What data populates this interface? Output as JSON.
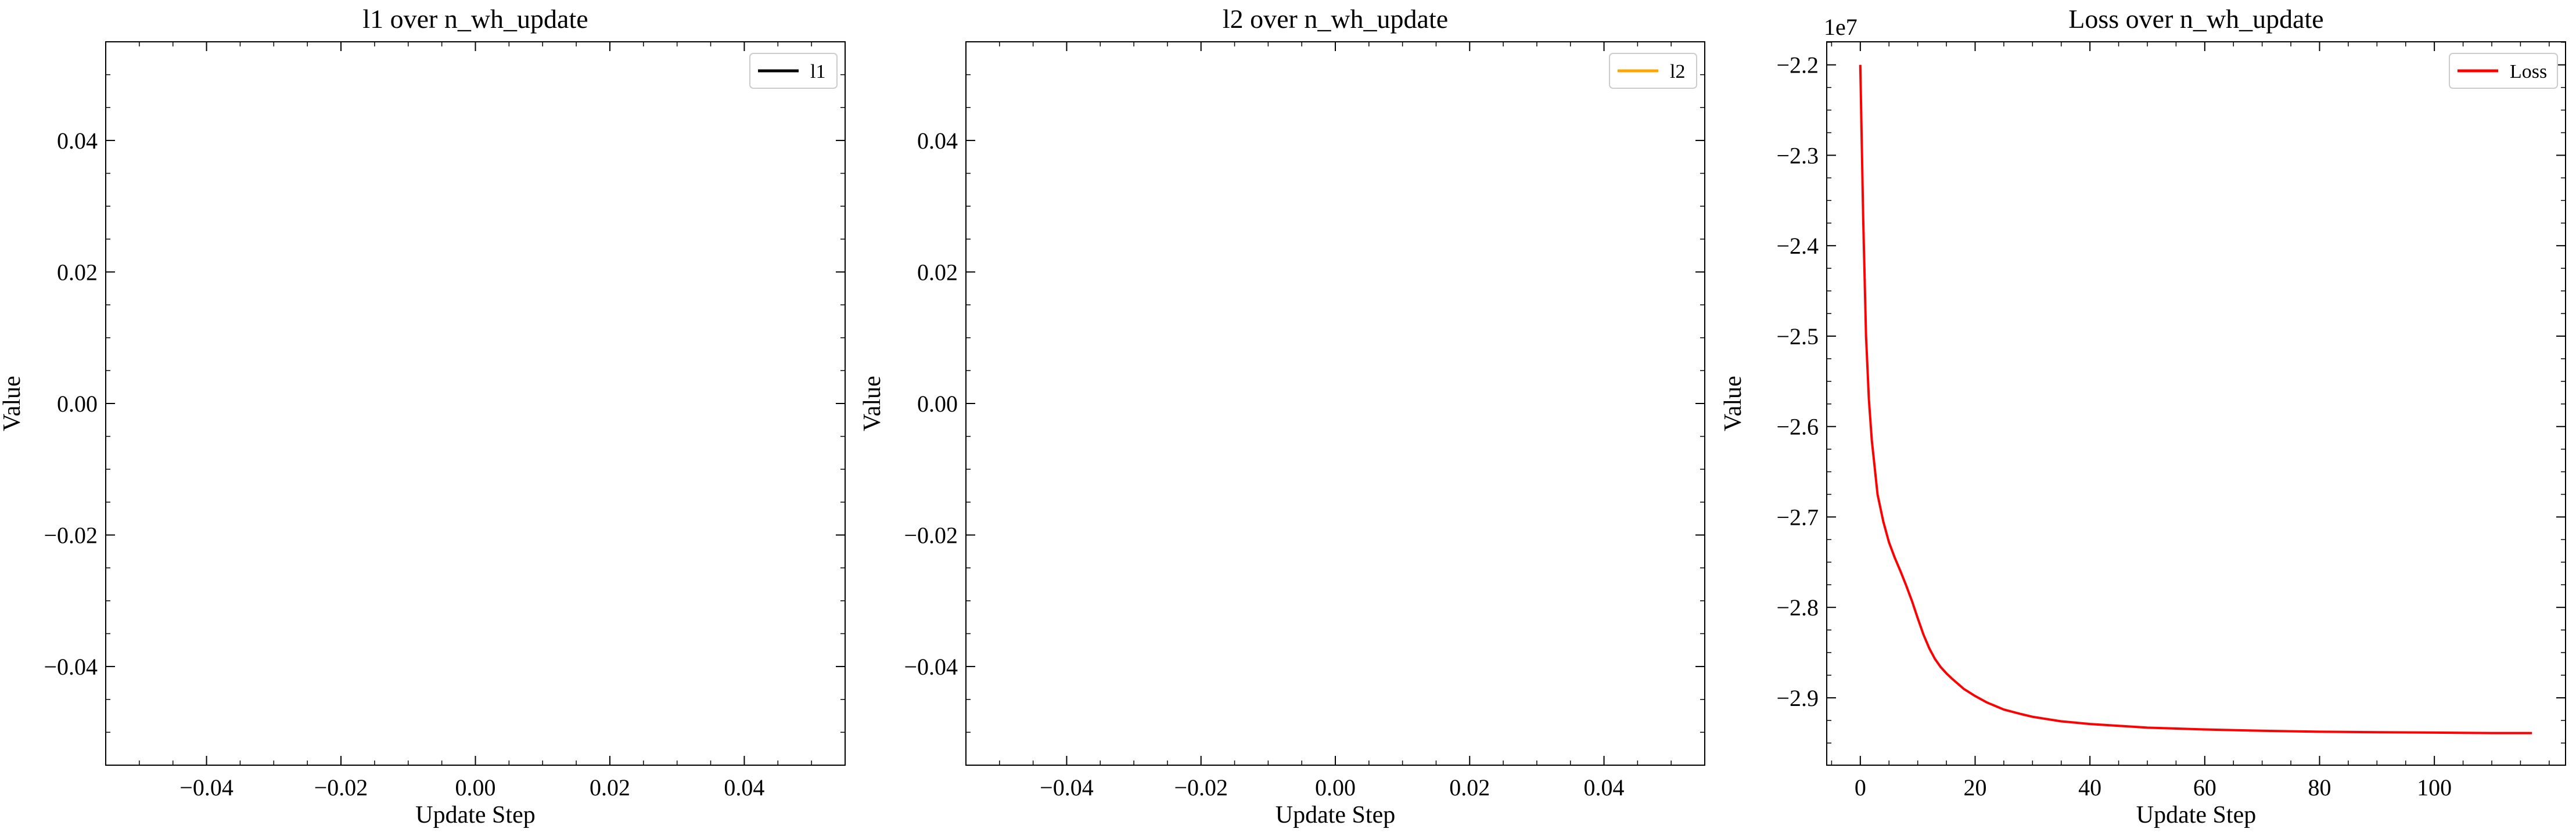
{
  "chart_data": [
    {
      "type": "line",
      "title": "l1 over n_wh_update",
      "xlabel": "Update Step",
      "ylabel": "Value",
      "xlim": [
        -0.055,
        0.055
      ],
      "ylim": [
        -0.055,
        0.055
      ],
      "xticks": [
        -0.04,
        -0.02,
        0.0,
        0.02,
        0.04
      ],
      "xtick_labels": [
        "−0.04",
        "−0.02",
        "0.00",
        "0.02",
        "0.04"
      ],
      "yticks": [
        0.04,
        0.02,
        0.0,
        -0.02,
        -0.04
      ],
      "ytick_labels": [
        "0.04",
        "0.02",
        "0.00",
        "−0.02",
        "−0.04"
      ],
      "legend": "top-right",
      "series": [
        {
          "name": "l1",
          "color": "#000000",
          "x": [],
          "y": []
        }
      ]
    },
    {
      "type": "line",
      "title": "l2 over n_wh_update",
      "xlabel": "Update Step",
      "ylabel": "Value",
      "xlim": [
        -0.055,
        0.055
      ],
      "ylim": [
        -0.055,
        0.055
      ],
      "xticks": [
        -0.04,
        -0.02,
        0.0,
        0.02,
        0.04
      ],
      "xtick_labels": [
        "−0.04",
        "−0.02",
        "0.00",
        "0.02",
        "0.04"
      ],
      "yticks": [
        0.04,
        0.02,
        0.0,
        -0.02,
        -0.04
      ],
      "ytick_labels": [
        "0.04",
        "0.02",
        "0.00",
        "−0.02",
        "−0.04"
      ],
      "legend": "top-right",
      "series": [
        {
          "name": "l2",
          "color": "#FFA500",
          "x": [],
          "y": []
        }
      ]
    },
    {
      "type": "line",
      "title": "Loss over n_wh_update",
      "xlabel": "Update Step",
      "ylabel": "Value",
      "y_offset_label": "1e7",
      "xlim": [
        -5.85,
        122.85
      ],
      "ylim": [
        -2.9745,
        -2.1745
      ],
      "xticks": [
        0,
        20,
        40,
        60,
        80,
        100
      ],
      "xtick_labels": [
        "0",
        "20",
        "40",
        "60",
        "80",
        "100"
      ],
      "yticks": [
        -2.2,
        -2.3,
        -2.4,
        -2.5,
        -2.6,
        -2.7,
        -2.8,
        -2.9
      ],
      "ytick_labels": [
        "−2.2",
        "−2.3",
        "−2.4",
        "−2.5",
        "−2.6",
        "−2.7",
        "−2.8",
        "−2.9"
      ],
      "legend": "top-right",
      "series": [
        {
          "name": "Loss",
          "color": "#FF0000",
          "x": [
            0,
            0.5,
            1,
            1.5,
            2,
            3,
            4,
            5,
            6,
            7,
            8,
            9,
            10,
            11,
            12,
            13,
            14,
            15,
            16,
            18,
            20,
            22,
            25,
            28,
            30,
            35,
            40,
            45,
            50,
            60,
            70,
            80,
            90,
            100,
            110,
            117
          ],
          "y": [
            -2.2,
            -2.37,
            -2.5,
            -2.57,
            -2.615,
            -2.675,
            -2.705,
            -2.728,
            -2.745,
            -2.76,
            -2.776,
            -2.793,
            -2.812,
            -2.83,
            -2.845,
            -2.857,
            -2.866,
            -2.873,
            -2.879,
            -2.89,
            -2.898,
            -2.905,
            -2.913,
            -2.918,
            -2.921,
            -2.926,
            -2.929,
            -2.931,
            -2.933,
            -2.935,
            -2.9365,
            -2.9375,
            -2.938,
            -2.9385,
            -2.939,
            -2.939
          ]
        }
      ]
    }
  ]
}
